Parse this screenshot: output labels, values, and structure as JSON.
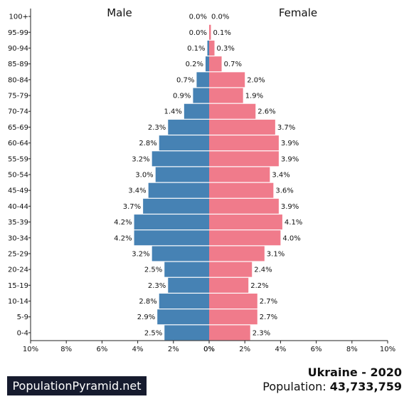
{
  "chart_data": {
    "type": "bar",
    "orientation": "horizontal-population-pyramid",
    "categories": [
      "0-4",
      "5-9",
      "10-14",
      "15-19",
      "20-24",
      "25-29",
      "30-34",
      "35-39",
      "40-44",
      "45-49",
      "50-54",
      "55-59",
      "60-64",
      "65-69",
      "70-74",
      "75-79",
      "80-84",
      "85-89",
      "90-94",
      "95-99",
      "100+"
    ],
    "series": [
      {
        "name": "Male",
        "color": "#4682b4",
        "values": [
          2.5,
          2.9,
          2.8,
          2.3,
          2.5,
          3.2,
          4.2,
          4.2,
          3.7,
          3.4,
          3.0,
          3.2,
          2.8,
          2.3,
          1.4,
          0.9,
          0.7,
          0.2,
          0.1,
          0.0,
          0.0
        ]
      },
      {
        "name": "Female",
        "color": "#f07b8b",
        "values": [
          2.3,
          2.7,
          2.7,
          2.2,
          2.4,
          3.1,
          4.0,
          4.1,
          3.9,
          3.6,
          3.4,
          3.9,
          3.9,
          3.7,
          2.6,
          1.9,
          2.0,
          0.7,
          0.3,
          0.1,
          0.0
        ]
      }
    ],
    "value_suffix": "%",
    "xlim": [
      -10,
      10
    ],
    "x_ticks": [
      "10%",
      "8%",
      "6%",
      "4%",
      "2%",
      "0%",
      "0%",
      "2%",
      "4%",
      "6%",
      "8%",
      "10%"
    ],
    "grid": false,
    "legend": "series names above each side"
  },
  "footer": {
    "brand": "PopulationPyramid.net",
    "country_year": "Ukraine - 2020",
    "population_label": "Population:",
    "population_value": "43,733,759"
  }
}
